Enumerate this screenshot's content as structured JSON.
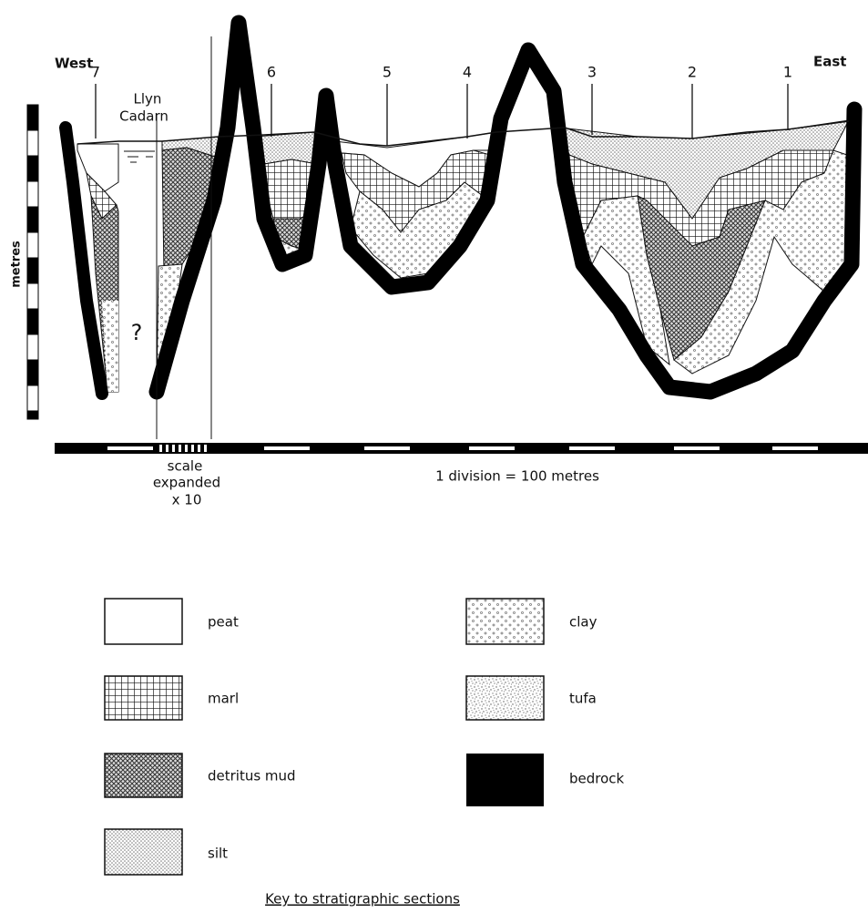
{
  "labels": {
    "west": "West",
    "east": "East",
    "lake": [
      "Llyn",
      "Cadarn"
    ],
    "unknown": "?",
    "vertical_axis": "metres",
    "expanded_scale": [
      "scale",
      "expanded",
      "x 10"
    ],
    "horizontal_scale": "1 division = 100 metres"
  },
  "sites": [
    "7",
    "6",
    "5",
    "4",
    "3",
    "2",
    "1"
  ],
  "legend": {
    "items": [
      "peat",
      "marl",
      "detritus mud",
      "silt",
      "clay",
      "tufa",
      "bedrock"
    ],
    "caption": "Key to stratigraphic sections"
  }
}
